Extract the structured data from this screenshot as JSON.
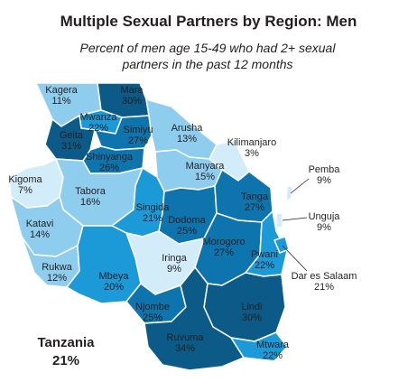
{
  "title": "Multiple Sexual Partners by Region:  Men",
  "subtitle_line1": "Percent of men age 15-49 who had 2+ sexual",
  "subtitle_line2": "partners in the past 12 months",
  "country": {
    "name": "Tanzania",
    "value": "21%"
  },
  "colors": {
    "lightest": "#d3ecfa",
    "light": "#8fcdee",
    "medium": "#1c9ad8",
    "dark": "#0e74ad",
    "darkest": "#0b5a88",
    "border": "#ffffff",
    "text": "#231f20"
  },
  "regions": [
    {
      "name": "Kagera",
      "value": "11%"
    },
    {
      "name": "Mara",
      "value": "30%"
    },
    {
      "name": "Mwanza",
      "value": "22%"
    },
    {
      "name": "Geita",
      "value": "31%"
    },
    {
      "name": "Simiyu",
      "value": "27%"
    },
    {
      "name": "Arusha",
      "value": "13%"
    },
    {
      "name": "Kilimanjaro",
      "value": "3%"
    },
    {
      "name": "Shinyanga",
      "value": "26%"
    },
    {
      "name": "Kigoma",
      "value": "7%"
    },
    {
      "name": "Tabora",
      "value": "16%"
    },
    {
      "name": "Manyara",
      "value": "15%"
    },
    {
      "name": "Singida",
      "value": "21%"
    },
    {
      "name": "Dodoma",
      "value": "25%"
    },
    {
      "name": "Tanga",
      "value": "27%"
    },
    {
      "name": "Pemba",
      "value": "9%"
    },
    {
      "name": "Unguja",
      "value": "9%"
    },
    {
      "name": "Katavi",
      "value": "14%"
    },
    {
      "name": "Morogoro",
      "value": "27%"
    },
    {
      "name": "Pwani",
      "value": "22%"
    },
    {
      "name": "Dar es Salaam",
      "value": "21%"
    },
    {
      "name": "Iringa",
      "value": "9%"
    },
    {
      "name": "Rukwa",
      "value": "12%"
    },
    {
      "name": "Mbeya",
      "value": "20%"
    },
    {
      "name": "Njombe",
      "value": "25%"
    },
    {
      "name": "Lindi",
      "value": "30%"
    },
    {
      "name": "Ruvuma",
      "value": "34%"
    },
    {
      "name": "Mtwara",
      "value": "22%"
    }
  ]
}
